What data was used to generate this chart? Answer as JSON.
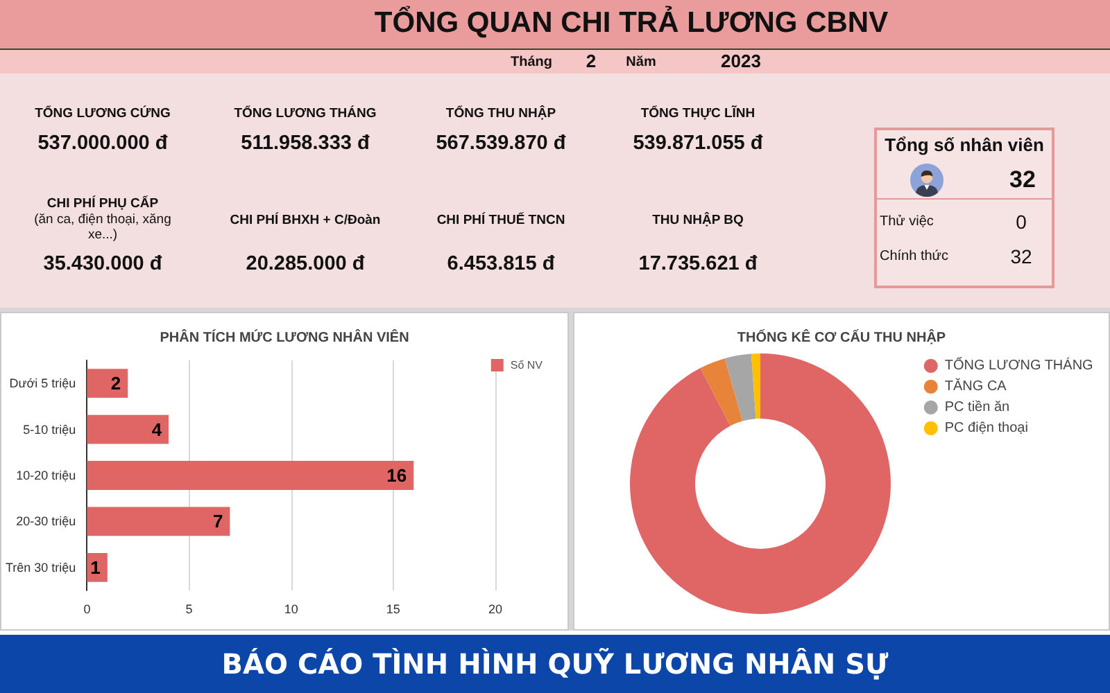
{
  "chart_data": [
    {
      "type": "other",
      "title": "TỔNG QUAN CHI TRẢ LƯƠNG CBNV",
      "annotations": [
        "Tháng",
        "2",
        "Năm",
        "2023",
        "TỔNG LƯƠNG CỨNG",
        "537.000.000 đ",
        "TỔNG LƯƠNG THÁNG",
        "511.958.333 đ",
        "TỔNG THU NHẬP",
        "567.539.870 đ",
        "TỔNG THỰC LĨNH",
        "539.871.055 đ",
        "CHI PHÍ PHỤ CẤP",
        "(ăn ca, điện thoại, xăng xe...)",
        "35.430.000 đ",
        "CHI PHÍ BHXH + C/Đoàn",
        "20.285.000 đ",
        "CHI PHÍ THUẾ TNCN",
        "6.453.815 đ",
        "THU NHẬP BQ",
        "17.735.621 đ"
      ]
    },
    {
      "type": "other",
      "title": "Tổng số nhân viên",
      "annotations": [
        "32",
        "Thử việc",
        "0",
        "Chính thức",
        "32"
      ]
    },
    {
      "type": "bar",
      "title": "PHÂN TÍCH MỨC LƯƠNG NHÂN VIÊN",
      "orientation": "horizontal",
      "categories": [
        "Dưới 5 triệu",
        "5-10 triệu",
        "10-20 triệu",
        "20-30 triệu",
        "Trên 30 triệu"
      ],
      "series": [
        {
          "name": "Số NV",
          "color": "#e06666",
          "values": [
            2,
            4,
            16,
            7,
            1
          ]
        }
      ],
      "xlim": [
        0,
        20
      ],
      "xticks": [
        0,
        5,
        10,
        15,
        20
      ],
      "grid": "x",
      "legend": "top right",
      "data_labels": true
    },
    {
      "type": "donut",
      "title": "THỐNG KÊ CƠ CẤU THU NHẬP",
      "categories": [
        "TỔNG LƯƠNG THÁNG",
        "TĂNG CA",
        "PC tiền ăn",
        "PC điện thoại"
      ],
      "values": [
        92.4,
        3.2,
        3.3,
        1.1
      ],
      "colors": [
        "#e06666",
        "#e8833a",
        "#a6a6a6",
        "#ffc000"
      ],
      "legend": "top right"
    },
    {
      "type": "other",
      "title": "BÁO CÁO TÌNH HÌNH QUỸ LƯƠNG NHÂN SỰ"
    }
  ]
}
